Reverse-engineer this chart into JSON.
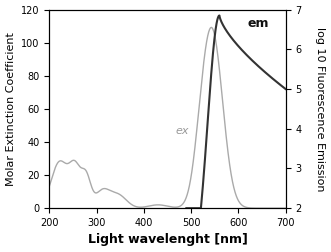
{
  "title": "",
  "xlabel": "Light wavelenght [nm]",
  "ylabel_left": "Molar Extinction Coefficient",
  "ylabel_right": "log 10 Fluorescence Emission",
  "xlim": [
    200,
    700
  ],
  "ylim_left": [
    0,
    120
  ],
  "ylim_right": [
    2,
    7
  ],
  "yticks_left": [
    0,
    20,
    40,
    60,
    80,
    100,
    120
  ],
  "yticks_right": [
    2,
    3,
    4,
    5,
    6,
    7
  ],
  "xticks": [
    200,
    300,
    400,
    500,
    600,
    700
  ],
  "ex_label": "ex",
  "em_label": "em",
  "ex_color": "#aaaaaa",
  "em_color": "#333333",
  "background_color": "#ffffff",
  "xlabel_fontsize": 9,
  "xlabel_fontweight": "bold",
  "ylabel_fontsize": 8,
  "tick_fontsize": 7
}
